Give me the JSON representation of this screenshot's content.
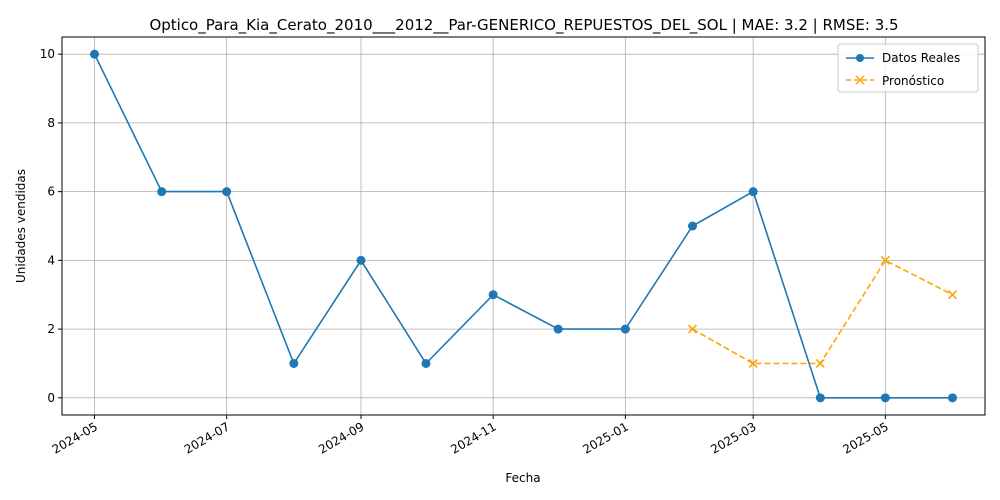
{
  "chart_data": {
    "type": "line",
    "title": "Optico_Para_Kia_Cerato_2010___2012__Par-GENERICO_REPUESTOS_DEL_SOL | MAE: 3.2 | RMSE: 3.5",
    "xlabel": "Fecha",
    "ylabel": "Unidades vendidas",
    "x_ticks": [
      "2024-05",
      "2024-07",
      "2024-09",
      "2024-11",
      "2025-01",
      "2025-03",
      "2025-05"
    ],
    "y_ticks": [
      0,
      2,
      4,
      6,
      8,
      10
    ],
    "ylim": [
      -0.5,
      10.5
    ],
    "xlim": [
      "2024-04-16",
      "2025-06-16"
    ],
    "grid": true,
    "legend_position": "top-right",
    "series": [
      {
        "name": "Datos Reales",
        "color": "#1f77b4",
        "marker": "circle",
        "linestyle": "solid",
        "points": [
          {
            "x": "2024-05-01",
            "y": 10
          },
          {
            "x": "2024-06-01",
            "y": 6
          },
          {
            "x": "2024-07-01",
            "y": 6
          },
          {
            "x": "2024-08-01",
            "y": 1
          },
          {
            "x": "2024-09-01",
            "y": 4
          },
          {
            "x": "2024-10-01",
            "y": 1
          },
          {
            "x": "2024-11-01",
            "y": 3
          },
          {
            "x": "2024-12-01",
            "y": 2
          },
          {
            "x": "2025-01-01",
            "y": 2
          },
          {
            "x": "2025-02-01",
            "y": 5
          },
          {
            "x": "2025-03-01",
            "y": 6
          },
          {
            "x": "2025-04-01",
            "y": 0
          },
          {
            "x": "2025-05-01",
            "y": 0
          },
          {
            "x": "2025-06-01",
            "y": 0
          }
        ]
      },
      {
        "name": "Pronóstico",
        "color": "#ffa500",
        "marker": "x",
        "linestyle": "dashed",
        "points": [
          {
            "x": "2025-02-01",
            "y": 2
          },
          {
            "x": "2025-03-01",
            "y": 1
          },
          {
            "x": "2025-04-01",
            "y": 1
          },
          {
            "x": "2025-05-01",
            "y": 4
          },
          {
            "x": "2025-06-01",
            "y": 3
          }
        ]
      }
    ]
  }
}
